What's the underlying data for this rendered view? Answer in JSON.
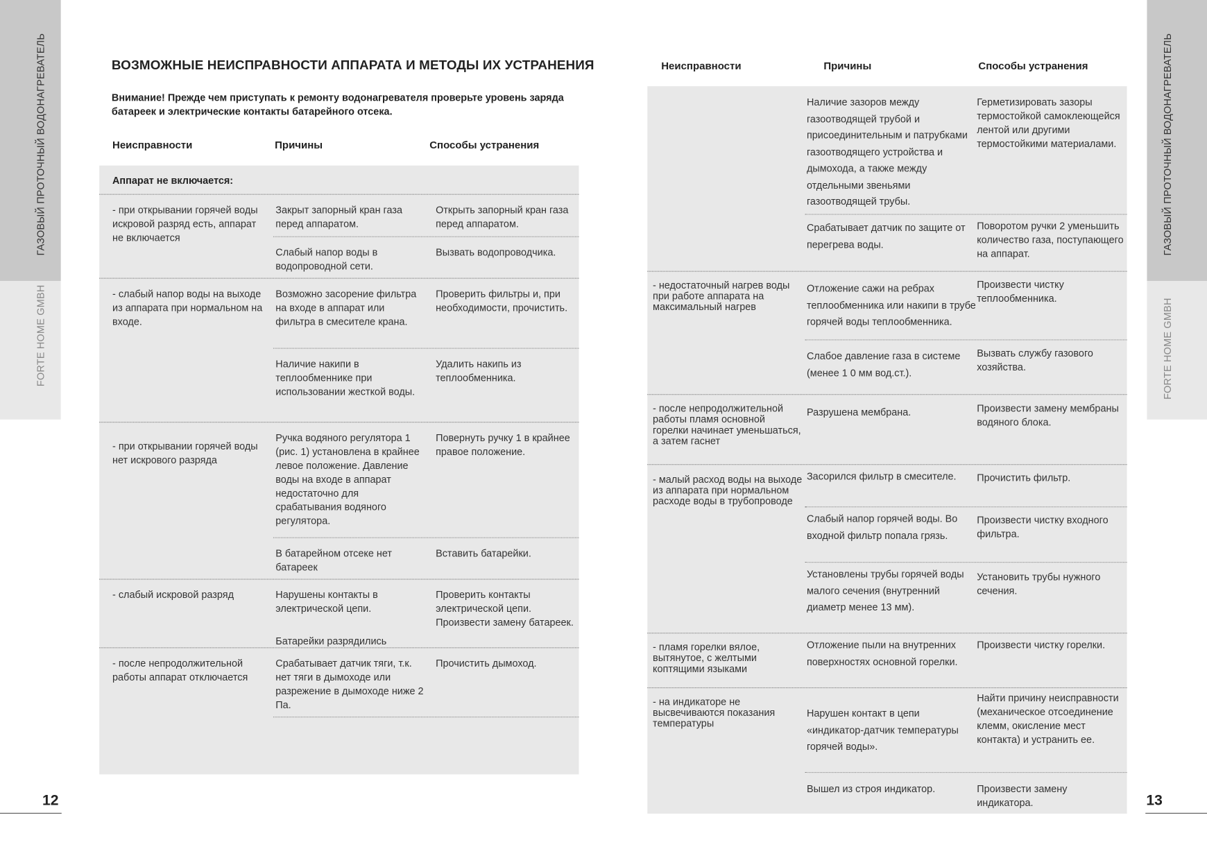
{
  "side_title": "ГАЗОВЫЙ ПРОТОЧНЫЙ ВОДОНАГРЕВАТЕЛЬ",
  "brand": "FORTE HOME GMBH",
  "left_page": {
    "page_number": "12",
    "title": "ВОЗМОЖНЫЕ НЕИСПРАВНОСТИ АППАРАТА И МЕТОДЫ ИХ УСТРАНЕНИЯ",
    "warning": "Внимание! Прежде чем приступать к ремонту водонагревателя проверьте уровень заряда батареек и электрические контакты батарейного отсека.",
    "headers": [
      "Неисправности",
      "Причины",
      "Способы устранения"
    ],
    "section_label": "Аппарат не включается:",
    "groups": [
      {
        "fault": "- при открывании горячей воды искровой разряд есть, аппарат не включается",
        "rows": [
          {
            "cause": "Закрыт запорный кран газа перед аппаратом.",
            "remedy": "Открыть запорный кран газа перед аппаратом."
          },
          {
            "cause": "Слабый напор воды в водопроводной сети.",
            "remedy": "Вызвать водопроводчика."
          }
        ]
      },
      {
        "fault": "- слабый напор воды на выходе из аппарата при нормальном на входе.",
        "rows": [
          {
            "cause": "Возможно засорение фильтра на входе в аппарат или фильтра в смесителе крана.",
            "remedy": "Проверить фильтры и, при необходимости, прочистить."
          },
          {
            "cause": "Наличие накипи в теплообменнике при использовании жесткой воды.",
            "remedy": "Удалить накипь из теплообменника."
          }
        ]
      },
      {
        "fault": "- при открывании горячей воды нет искрового разряда",
        "rows": [
          {
            "cause": "Ручка водяного регулятора 1 (рис. 1) установлена в крайнее левое положение. Давление воды на входе в аппарат недостаточно для срабатывания водяного регулятора.",
            "remedy": "Повернуть ручку 1 в крайнее правое положение."
          },
          {
            "cause": "В батарейном отсеке нет батареек",
            "remedy": "Вставить батарейки."
          }
        ]
      },
      {
        "fault": "- слабый искровой разряд",
        "rows": [
          {
            "cause": "Нарушены контакты в электрической цепи.",
            "remedy": "Проверить контакты электрической цепи."
          },
          {
            "cause": "Батарейки разрядились",
            "remedy": "Произвести замену батареек."
          }
        ]
      },
      {
        "fault": "- после непродолжительной работы аппарат отключается",
        "rows": [
          {
            "cause": "Срабатывает датчик тяги, т.к. нет тяги в дымоходе или разрежение в дымоходе ниже 2 Па.",
            "remedy": "Прочистить дымоход."
          }
        ]
      }
    ]
  },
  "right_page": {
    "page_number": "13",
    "headers": [
      "Неисправности",
      "Причины",
      "Способы устранения"
    ],
    "groups": [
      {
        "fault": "",
        "rows": [
          {
            "cause": "Наличие зазоров между газоотводящей трубой и присоединительным и патрубками газоотводящего устройства и дымохода, а также между отдельными звеньями газоотводящей трубы.",
            "remedy": "Герметизировать зазоры термостойкой самоклеющейся лентой или другими термостойкими материалами."
          },
          {
            "cause": "Срабатывает датчик по защите от перегрева воды.",
            "remedy": "Поворотом ручки 2 уменьшить количество газа, поступающего на аппарат."
          }
        ]
      },
      {
        "fault": "- недостаточный нагрев воды при работе аппарата на максимальный нагрев",
        "rows": [
          {
            "cause": "Отложение сажи на ребрах теплообменника или накипи в трубе горячей воды теплообменника.",
            "remedy": "Произвести чистку теплообменника."
          },
          {
            "cause": "Слабое давление газа в системе (менее 1 0 мм вод.ст.).",
            "remedy": "Вызвать службу газового хозяйства."
          }
        ]
      },
      {
        "fault": "- после непродолжительной работы пламя основной горелки начинает уменьшаться, а затем гаснет",
        "rows": [
          {
            "cause": "Разрушена мембрана.",
            "remedy": "Произвести замену мембраны водяного блока."
          }
        ]
      },
      {
        "fault": "- малый расход воды на выходе из аппарата при нормальном расходе воды в трубопроводе",
        "rows": [
          {
            "cause": "Засорился фильтр в смесителе.",
            "remedy": "Прочистить фильтр."
          },
          {
            "cause": "Слабый напор горячей воды. Во входной фильтр попала грязь.",
            "remedy": "Произвести чистку входного фильтра."
          },
          {
            "cause": "Установлены трубы горячей воды малого сечения (внутренний диаметр менее 13 мм).",
            "remedy": "Установить трубы нужного сечения."
          }
        ]
      },
      {
        "fault": "- пламя горелки вялое, вытянутое, с желтыми коптящими языками",
        "rows": [
          {
            "cause": "Отложение пыли на внутренних поверхностях основной горелки.",
            "remedy": "Произвести чистку горелки."
          }
        ]
      },
      {
        "fault": "- на индикаторе не высвечиваются показания температуры",
        "rows": [
          {
            "cause": "Нарушен контакт в цепи «индикатор-датчик температуры горячей воды».",
            "remedy": "Найти причину неисправности (механическое отсоединение клемм, окисление мест контакта) и устранить ее."
          },
          {
            "cause": "Вышел из строя индикатор.",
            "remedy": "Произвести замену индикатора."
          }
        ]
      }
    ]
  }
}
